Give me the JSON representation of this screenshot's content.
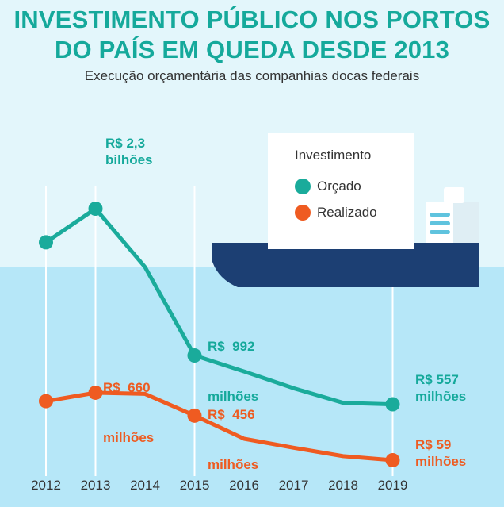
{
  "title_line1": "INVESTIMENTO PÚBLICO NOS PORTOS",
  "title_line2": "DO PAÍS EM QUEDA DESDE 2013",
  "subtitle": "Execução orçamentária das companhias docas federais",
  "legend": {
    "title": "Investimento",
    "items": [
      {
        "label": "Orçado",
        "color": "#1aab9b"
      },
      {
        "label": "Realizado",
        "color": "#ef5b21"
      }
    ]
  },
  "annotations": {
    "orcado_2013": [
      "R$ 2,3",
      "bilhões"
    ],
    "orcado_2015": [
      "R$  992",
      "milhões"
    ],
    "orcado_2019": [
      "R$ 557",
      "milhões"
    ],
    "realizado_2013": [
      "R$  660",
      "milhões"
    ],
    "realizado_2015": [
      "R$  456",
      "milhões"
    ],
    "realizado_2019": [
      "R$ 59",
      "milhões"
    ]
  },
  "colors": {
    "background": "#e3f6fb",
    "water": "#b6e7f8",
    "ship_hull": "#1c3f73",
    "ship_cabin": "#ffffff",
    "grid_line": "#ffffff"
  },
  "chart_data": {
    "type": "line",
    "x": [
      2012,
      2013,
      2014,
      2015,
      2016,
      2017,
      2018,
      2019
    ],
    "unit": "R$ milhões",
    "ylim": [
      0,
      2600
    ],
    "series": [
      {
        "name": "Orçado",
        "color": "#1aab9b",
        "values": [
          2000,
          2300,
          1780,
          992,
          850,
          700,
          570,
          557
        ],
        "markers": [
          2012,
          2013,
          2015,
          2019
        ]
      },
      {
        "name": "Realizado",
        "color": "#ef5b21",
        "values": [
          585,
          660,
          650,
          456,
          250,
          170,
          95,
          59
        ],
        "markers": [
          2012,
          2013,
          2015,
          2019
        ]
      }
    ],
    "grid_lines_at": [
      2012,
      2013,
      2015,
      2019
    ]
  }
}
